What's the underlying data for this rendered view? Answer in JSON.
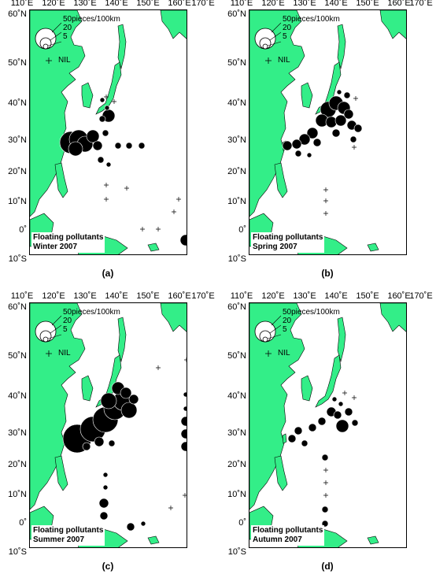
{
  "axes": {
    "lon_labels": [
      "110˚E",
      "120˚E",
      "130˚E",
      "140˚E",
      "150˚E",
      "160˚E",
      "170˚E"
    ],
    "lat_labels": [
      "60˚N",
      "50˚N",
      "40˚N",
      "30˚N",
      "20˚N",
      "10˚N",
      "0˚",
      "10˚S"
    ]
  },
  "legend": {
    "sizes": [
      "50pieces/100km",
      "20",
      "5"
    ],
    "nil_label": "NIL"
  },
  "panels": [
    {
      "caption": "(a)",
      "title_line1": "Floating pollutants",
      "title_line2": "Winter 2007"
    },
    {
      "caption": "(b)",
      "title_line1": "Floating pollutants",
      "title_line2": "Spring 2007"
    },
    {
      "caption": "(c)",
      "title_line1": "Floating pollutants",
      "title_line2": "Summer 2007"
    },
    {
      "caption": "(d)",
      "title_line1": "Floating pollutants",
      "title_line2": "Autumn 2007"
    }
  ],
  "colors": {
    "land": "#33ee88",
    "marker": "#000000",
    "sea": "#ffffff"
  }
}
